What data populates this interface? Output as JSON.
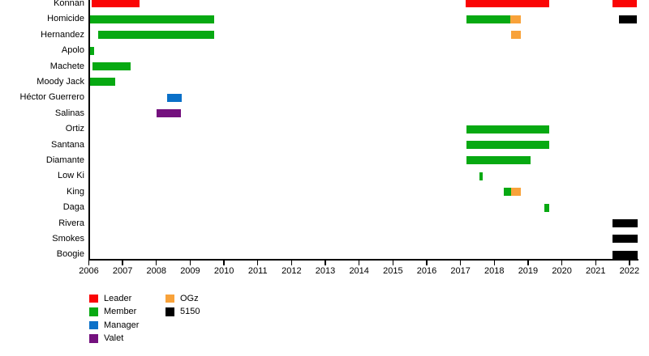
{
  "chart_data": {
    "type": "timeline",
    "title": "",
    "x_axis": {
      "min": 2006,
      "max": 2022.35,
      "ticks": [
        2006,
        2007,
        2008,
        2009,
        2010,
        2011,
        2012,
        2013,
        2014,
        2015,
        2016,
        2017,
        2018,
        2019,
        2020,
        2021,
        2022
      ]
    },
    "legend": [
      {
        "label": "Leader",
        "color": "#fa0505"
      },
      {
        "label": "Member",
        "color": "#07a912"
      },
      {
        "label": "Manager",
        "color": "#0a70c8"
      },
      {
        "label": "Valet",
        "color": "#74117e"
      },
      {
        "label": "OGz",
        "color": "#f8a23a"
      },
      {
        "label": "5150",
        "color": "#000000"
      }
    ],
    "rows": [
      {
        "name": "Konnan",
        "bars": [
          {
            "role": "Leader",
            "start": 2006.08,
            "end": 2007.49
          },
          {
            "role": "Leader",
            "start": 2017.16,
            "end": 2019.63
          },
          {
            "role": "Leader",
            "start": 2021.49,
            "end": 2022.23
          }
        ]
      },
      {
        "name": "Homicide",
        "bars": [
          {
            "role": "Member",
            "start": 2006.03,
            "end": 2009.72
          },
          {
            "role": "Member",
            "start": 2017.17,
            "end": 2018.48
          },
          {
            "role": "OGz",
            "start": 2018.48,
            "end": 2018.79
          },
          {
            "role": "5150",
            "start": 2021.7,
            "end": 2022.23
          }
        ]
      },
      {
        "name": "Hernandez",
        "bars": [
          {
            "role": "Member",
            "start": 2006.28,
            "end": 2009.72
          },
          {
            "role": "OGz",
            "start": 2018.49,
            "end": 2018.78
          }
        ]
      },
      {
        "name": "Apolo",
        "bars": [
          {
            "role": "Member",
            "start": 2006.04,
            "end": 2006.15
          }
        ]
      },
      {
        "name": "Machete",
        "bars": [
          {
            "role": "Member",
            "start": 2006.12,
            "end": 2007.24
          }
        ]
      },
      {
        "name": "Moody Jack",
        "bars": [
          {
            "role": "Member",
            "start": 2006.04,
            "end": 2006.78
          }
        ]
      },
      {
        "name": "Héctor Guerrero",
        "bars": [
          {
            "role": "Manager",
            "start": 2008.32,
            "end": 2008.75
          }
        ]
      },
      {
        "name": "Salinas",
        "bars": [
          {
            "role": "Valet",
            "start": 2008.01,
            "end": 2008.73
          }
        ]
      },
      {
        "name": "Ortiz",
        "bars": [
          {
            "role": "Member",
            "start": 2017.17,
            "end": 2019.62
          }
        ]
      },
      {
        "name": "Santana",
        "bars": [
          {
            "role": "Member",
            "start": 2017.17,
            "end": 2019.62
          }
        ]
      },
      {
        "name": "Diamante",
        "bars": [
          {
            "role": "Member",
            "start": 2017.17,
            "end": 2019.08
          }
        ]
      },
      {
        "name": "Low Ki",
        "bars": [
          {
            "role": "Member",
            "start": 2017.55,
            "end": 2017.65
          }
        ]
      },
      {
        "name": "King",
        "bars": [
          {
            "role": "Member",
            "start": 2018.28,
            "end": 2018.49
          },
          {
            "role": "OGz",
            "start": 2018.49,
            "end": 2018.78
          }
        ]
      },
      {
        "name": "Daga",
        "bars": [
          {
            "role": "Member",
            "start": 2019.49,
            "end": 2019.62
          }
        ]
      },
      {
        "name": "Rivera",
        "bars": [
          {
            "role": "5150",
            "start": 2021.49,
            "end": 2022.24
          }
        ]
      },
      {
        "name": "Smokes",
        "bars": [
          {
            "role": "5150",
            "start": 2021.49,
            "end": 2022.24
          }
        ]
      },
      {
        "name": "Boogie",
        "bars": [
          {
            "role": "5150",
            "start": 2021.49,
            "end": 2022.24
          }
        ]
      }
    ]
  }
}
